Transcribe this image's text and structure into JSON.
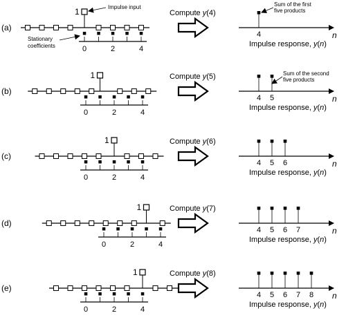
{
  "figure": {
    "rows": [
      {
        "label": "(a)",
        "impulse_value": "1",
        "impulse_index": 4,
        "coef_ticks": [
          "0",
          "2",
          "4"
        ],
        "compute_prefix": "Compute ",
        "compute_var": "y",
        "compute_arg": "(4)",
        "response_indices": [
          4
        ],
        "response_ticks": [
          "4"
        ],
        "n_label": "n",
        "response_label_prefix": "Impulse response, ",
        "response_label_var": "y",
        "response_label_open": "(",
        "response_label_n": "n",
        "response_label_close": ")"
      },
      {
        "label": "(b)",
        "impulse_value": "1",
        "impulse_index": 4,
        "coef_ticks": [
          "0",
          "2",
          "4"
        ],
        "compute_prefix": "Compute ",
        "compute_var": "y",
        "compute_arg": "(5)",
        "response_indices": [
          4,
          5
        ],
        "response_ticks": [
          "4",
          "5"
        ],
        "n_label": "n",
        "response_label_prefix": "Impulse response, ",
        "response_label_var": "y",
        "response_label_open": "(",
        "response_label_n": "n",
        "response_label_close": ")"
      },
      {
        "label": "(c)",
        "impulse_value": "1",
        "impulse_index": 4,
        "coef_ticks": [
          "0",
          "2",
          "4"
        ],
        "compute_prefix": "Compute ",
        "compute_var": "y",
        "compute_arg": "(6)",
        "response_indices": [
          4,
          5,
          6
        ],
        "response_ticks": [
          "4",
          "5",
          "6"
        ],
        "n_label": "n",
        "response_label_prefix": "Impulse response, ",
        "response_label_var": "y",
        "response_label_open": "(",
        "response_label_n": "n",
        "response_label_close": ")"
      },
      {
        "label": "(d)",
        "impulse_value": "1",
        "impulse_index": 4,
        "coef_ticks": [
          "0",
          "2",
          "4"
        ],
        "compute_prefix": "Compute ",
        "compute_var": "y",
        "compute_arg": "(7)",
        "response_indices": [
          4,
          5,
          6,
          7
        ],
        "response_ticks": [
          "4",
          "5",
          "6",
          "7"
        ],
        "n_label": "n",
        "response_label_prefix": "Impulse response, ",
        "response_label_var": "y",
        "response_label_open": "(",
        "response_label_n": "n",
        "response_label_close": ")"
      },
      {
        "label": "(e)",
        "impulse_value": "1",
        "impulse_index": 4,
        "coef_ticks": [
          "0",
          "2",
          "4"
        ],
        "compute_prefix": "Compute ",
        "compute_var": "y",
        "compute_arg": "(8)",
        "response_indices": [
          4,
          5,
          6,
          7,
          8
        ],
        "response_ticks": [
          "4",
          "5",
          "6",
          "7",
          "8"
        ],
        "n_label": "n",
        "response_label_prefix": "Impulse response, ",
        "response_label_var": "y",
        "response_label_open": "(",
        "response_label_n": "n",
        "response_label_close": ")"
      }
    ],
    "annotations": {
      "impulse_input": "Impulse input",
      "stationary_line1": "Stationary",
      "stationary_line2": "coefficients",
      "sum_first_line1": "Sum of the first",
      "sum_first_line2": "five products",
      "sum_second_line1": "Sum of the second",
      "sum_second_line2": "five products"
    }
  }
}
